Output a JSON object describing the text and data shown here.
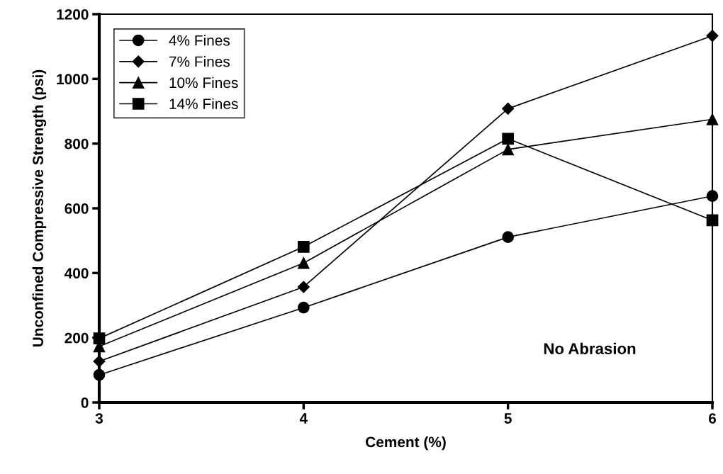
{
  "chart_data": {
    "type": "line",
    "xlabel": "Cement (%)",
    "ylabel": "Unconfined Compressive Strength (psi)",
    "x": [
      3,
      4,
      5,
      6
    ],
    "series": [
      {
        "name": "4% Fines",
        "color": "#000000",
        "marker": "circle",
        "values": [
          85,
          293,
          511,
          638
        ]
      },
      {
        "name": "7% Fines",
        "color": "#000000",
        "marker": "diamond",
        "values": [
          127,
          357,
          908,
          1133
        ]
      },
      {
        "name": "10% Fines",
        "color": "#000000",
        "marker": "triangle",
        "values": [
          173,
          431,
          782,
          875
        ]
      },
      {
        "name": "14% Fines",
        "color": "#000000",
        "marker": "square",
        "values": [
          198,
          481,
          815,
          563
        ]
      }
    ],
    "xlim": [
      3,
      6
    ],
    "xticks": [
      3,
      4,
      5,
      6
    ],
    "ylim": [
      0,
      1200
    ],
    "yticks": [
      0,
      200,
      400,
      600,
      800,
      1000,
      1200
    ],
    "grid": false,
    "legend": "top left",
    "line_style": "solid",
    "annotations": [
      "No Abrasion"
    ]
  }
}
